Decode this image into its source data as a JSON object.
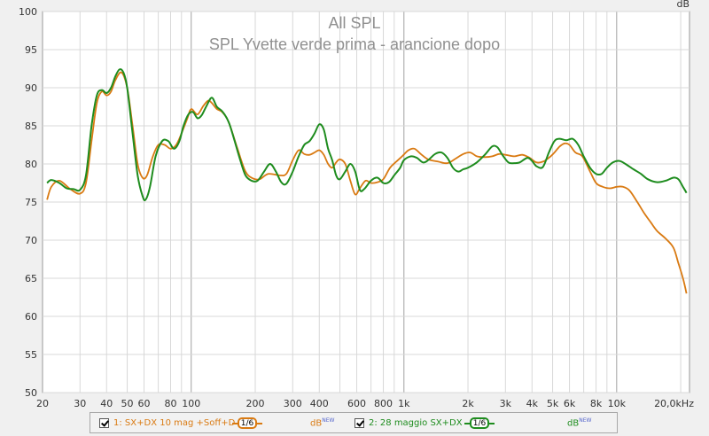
{
  "chart_data": {
    "type": "line",
    "title": "All SPL",
    "subtitle": "SPL Yvette verde prima - arancione dopo",
    "ylabel": "dB",
    "xscale": "log",
    "xlim": [
      20,
      22000
    ],
    "ylim": [
      50,
      100
    ],
    "y_ticks": [
      50,
      55,
      60,
      65,
      70,
      75,
      80,
      85,
      90,
      95,
      100
    ],
    "x_ticks": [
      {
        "value": 20,
        "label": "20"
      },
      {
        "value": 30,
        "label": "30"
      },
      {
        "value": 40,
        "label": "40"
      },
      {
        "value": 50,
        "label": "50"
      },
      {
        "value": 60,
        "label": "60"
      },
      {
        "value": 80,
        "label": "80"
      },
      {
        "value": 100,
        "label": "100"
      },
      {
        "value": 200,
        "label": "200"
      },
      {
        "value": 300,
        "label": "300"
      },
      {
        "value": 400,
        "label": "400"
      },
      {
        "value": 600,
        "label": "600"
      },
      {
        "value": 800,
        "label": "800"
      },
      {
        "value": 1000,
        "label": "1k"
      },
      {
        "value": 2000,
        "label": "2k"
      },
      {
        "value": 3000,
        "label": "3k"
      },
      {
        "value": 4000,
        "label": "4k"
      },
      {
        "value": 5000,
        "label": "5k"
      },
      {
        "value": 6000,
        "label": "6k"
      },
      {
        "value": 8000,
        "label": "8k"
      },
      {
        "value": 10000,
        "label": "10k"
      },
      {
        "value": 20000,
        "label": "20,0kHz"
      }
    ],
    "grid": true,
    "series": [
      {
        "name": "1: SX+DX 10 mag +Soff+D",
        "color": "#d97a12",
        "points": [
          [
            21,
            75.3
          ],
          [
            22,
            77
          ],
          [
            24,
            77.8
          ],
          [
            27,
            76.7
          ],
          [
            30,
            76.1
          ],
          [
            32,
            77.5
          ],
          [
            34,
            83
          ],
          [
            36,
            88
          ],
          [
            38,
            89.5
          ],
          [
            40,
            89
          ],
          [
            42,
            89.5
          ],
          [
            44,
            91
          ],
          [
            47,
            92
          ],
          [
            50,
            90
          ],
          [
            53,
            85
          ],
          [
            56,
            80
          ],
          [
            59,
            78.2
          ],
          [
            62,
            78.5
          ],
          [
            66,
            81
          ],
          [
            70,
            82.5
          ],
          [
            75,
            82.5
          ],
          [
            80,
            82
          ],
          [
            85,
            82.5
          ],
          [
            90,
            84
          ],
          [
            96,
            86
          ],
          [
            100,
            87.2
          ],
          [
            107,
            86.5
          ],
          [
            114,
            87.6
          ],
          [
            120,
            88.3
          ],
          [
            125,
            88
          ],
          [
            132,
            87.2
          ],
          [
            140,
            86.8
          ],
          [
            150,
            85.5
          ],
          [
            165,
            82
          ],
          [
            180,
            79
          ],
          [
            195,
            78.1
          ],
          [
            210,
            78
          ],
          [
            230,
            78.7
          ],
          [
            260,
            78.5
          ],
          [
            280,
            78.7
          ],
          [
            300,
            80.5
          ],
          [
            320,
            81.8
          ],
          [
            340,
            81.3
          ],
          [
            360,
            81.2
          ],
          [
            380,
            81.5
          ],
          [
            400,
            81.8
          ],
          [
            420,
            81.2
          ],
          [
            440,
            80
          ],
          [
            460,
            79.5
          ],
          [
            480,
            80.2
          ],
          [
            500,
            80.6
          ],
          [
            530,
            80
          ],
          [
            560,
            77.8
          ],
          [
            590,
            76
          ],
          [
            620,
            76.8
          ],
          [
            660,
            77.8
          ],
          [
            700,
            77.5
          ],
          [
            750,
            77.6
          ],
          [
            800,
            78
          ],
          [
            860,
            79.5
          ],
          [
            920,
            80.3
          ],
          [
            980,
            81
          ],
          [
            1050,
            81.8
          ],
          [
            1120,
            82
          ],
          [
            1200,
            81.3
          ],
          [
            1300,
            80.6
          ],
          [
            1450,
            80.3
          ],
          [
            1600,
            80.1
          ],
          [
            1750,
            80.7
          ],
          [
            1900,
            81.3
          ],
          [
            2050,
            81.5
          ],
          [
            2200,
            81
          ],
          [
            2400,
            80.9
          ],
          [
            2600,
            81
          ],
          [
            2800,
            81.3
          ],
          [
            3000,
            81.2
          ],
          [
            3300,
            81
          ],
          [
            3600,
            81.2
          ],
          [
            3900,
            80.8
          ],
          [
            4200,
            80.2
          ],
          [
            4500,
            80.3
          ],
          [
            4800,
            80.8
          ],
          [
            5100,
            81.5
          ],
          [
            5400,
            82.3
          ],
          [
            5700,
            82.7
          ],
          [
            6000,
            82.5
          ],
          [
            6400,
            81.5
          ],
          [
            6900,
            81
          ],
          [
            7500,
            79
          ],
          [
            8000,
            77.5
          ],
          [
            8600,
            77
          ],
          [
            9300,
            76.8
          ],
          [
            10000,
            77
          ],
          [
            10700,
            77
          ],
          [
            11500,
            76.5
          ],
          [
            12500,
            75
          ],
          [
            13500,
            73.5
          ],
          [
            14500,
            72.3
          ],
          [
            15500,
            71.2
          ],
          [
            17000,
            70.2
          ],
          [
            18500,
            69
          ],
          [
            19500,
            67
          ],
          [
            20500,
            65
          ],
          [
            21300,
            63
          ]
        ]
      },
      {
        "name": "2: 28 maggio SX+DX",
        "color": "#1e8c1e",
        "points": [
          [
            21,
            77.5
          ],
          [
            22,
            77.9
          ],
          [
            24,
            77.5
          ],
          [
            26,
            76.8
          ],
          [
            28,
            76.7
          ],
          [
            30,
            76.6
          ],
          [
            32,
            78.5
          ],
          [
            34,
            85
          ],
          [
            36,
            89
          ],
          [
            38,
            89.7
          ],
          [
            40,
            89.3
          ],
          [
            42,
            90
          ],
          [
            44,
            91.5
          ],
          [
            46,
            92.4
          ],
          [
            48,
            92
          ],
          [
            50,
            90
          ],
          [
            53,
            84
          ],
          [
            56,
            78.5
          ],
          [
            59,
            75.8
          ],
          [
            61,
            75.3
          ],
          [
            64,
            77
          ],
          [
            68,
            81
          ],
          [
            73,
            83
          ],
          [
            78,
            83
          ],
          [
            83,
            82
          ],
          [
            88,
            83
          ],
          [
            92,
            85
          ],
          [
            97,
            86.5
          ],
          [
            102,
            86.8
          ],
          [
            107,
            86
          ],
          [
            112,
            86.4
          ],
          [
            118,
            87.6
          ],
          [
            125,
            88.7
          ],
          [
            132,
            87.5
          ],
          [
            140,
            86.9
          ],
          [
            150,
            85.5
          ],
          [
            160,
            83
          ],
          [
            170,
            80.5
          ],
          [
            180,
            78.5
          ],
          [
            192,
            77.8
          ],
          [
            205,
            77.8
          ],
          [
            220,
            79
          ],
          [
            235,
            80
          ],
          [
            250,
            79
          ],
          [
            265,
            77.6
          ],
          [
            280,
            77.4
          ],
          [
            300,
            79
          ],
          [
            320,
            81
          ],
          [
            340,
            82.5
          ],
          [
            360,
            83
          ],
          [
            380,
            84
          ],
          [
            400,
            85.2
          ],
          [
            420,
            84.5
          ],
          [
            440,
            82
          ],
          [
            460,
            80.5
          ],
          [
            480,
            78.5
          ],
          [
            500,
            78
          ],
          [
            530,
            79
          ],
          [
            560,
            80
          ],
          [
            590,
            79
          ],
          [
            620,
            76.6
          ],
          [
            650,
            76.7
          ],
          [
            700,
            77.8
          ],
          [
            750,
            78.2
          ],
          [
            800,
            77.5
          ],
          [
            850,
            77.6
          ],
          [
            900,
            78.5
          ],
          [
            960,
            79.5
          ],
          [
            1000,
            80.5
          ],
          [
            1080,
            81
          ],
          [
            1150,
            80.8
          ],
          [
            1230,
            80.2
          ],
          [
            1300,
            80.5
          ],
          [
            1400,
            81.3
          ],
          [
            1500,
            81.5
          ],
          [
            1600,
            80.8
          ],
          [
            1700,
            79.5
          ],
          [
            1800,
            79
          ],
          [
            1900,
            79.3
          ],
          [
            2000,
            79.5
          ],
          [
            2200,
            80.2
          ],
          [
            2400,
            81.2
          ],
          [
            2600,
            82.3
          ],
          [
            2750,
            82.2
          ],
          [
            2900,
            81.2
          ],
          [
            3100,
            80.2
          ],
          [
            3300,
            80.1
          ],
          [
            3500,
            80.2
          ],
          [
            3800,
            80.8
          ],
          [
            4000,
            80.4
          ],
          [
            4200,
            79.7
          ],
          [
            4500,
            79.6
          ],
          [
            4800,
            81.5
          ],
          [
            5100,
            83
          ],
          [
            5400,
            83.3
          ],
          [
            5800,
            83.1
          ],
          [
            6200,
            83.3
          ],
          [
            6600,
            82.5
          ],
          [
            7000,
            81
          ],
          [
            7500,
            79.5
          ],
          [
            8000,
            78.7
          ],
          [
            8500,
            78.7
          ],
          [
            9000,
            79.5
          ],
          [
            9600,
            80.2
          ],
          [
            10300,
            80.4
          ],
          [
            11000,
            80
          ],
          [
            12000,
            79.3
          ],
          [
            13000,
            78.7
          ],
          [
            14000,
            78
          ],
          [
            15500,
            77.6
          ],
          [
            17000,
            77.8
          ],
          [
            18500,
            78.2
          ],
          [
            19500,
            78
          ],
          [
            20500,
            77
          ],
          [
            21300,
            76.2
          ]
        ]
      }
    ]
  },
  "legend": {
    "items": [
      {
        "checked": true,
        "label": "1: SX+DX 10 mag +Soff+D",
        "smoothing": "1/6",
        "unit": "dB",
        "unit_badge": "NEW",
        "color": "#d97a12"
      },
      {
        "checked": true,
        "label": "2: 28 maggio SX+DX",
        "smoothing": "1/6",
        "unit": "dB",
        "unit_badge": "NEW",
        "color": "#1e8c1e"
      }
    ]
  }
}
